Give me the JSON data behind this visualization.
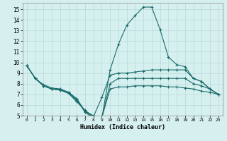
{
  "xlabel": "Humidex (Indice chaleur)",
  "bg_color": "#d6f0f0",
  "grid_color": "#b8d8d8",
  "line_color": "#1a6b6b",
  "xlim": [
    -0.5,
    23.5
  ],
  "ylim": [
    5,
    15.6
  ],
  "yticks": [
    5,
    6,
    7,
    8,
    9,
    10,
    11,
    12,
    13,
    14,
    15
  ],
  "xticks": [
    0,
    1,
    2,
    3,
    4,
    5,
    6,
    7,
    8,
    9,
    10,
    11,
    12,
    13,
    14,
    15,
    16,
    17,
    18,
    19,
    20,
    21,
    22,
    23
  ],
  "lines": [
    {
      "x": [
        0,
        1,
        2,
        3,
        4,
        5,
        6,
        7,
        8,
        9,
        10,
        11,
        12,
        13,
        14,
        15,
        16,
        17,
        18,
        19,
        20,
        21,
        22,
        23
      ],
      "y": [
        9.7,
        8.5,
        7.8,
        7.5,
        7.5,
        7.2,
        6.5,
        5.3,
        4.8,
        4.7,
        9.3,
        11.7,
        13.5,
        14.4,
        15.2,
        15.2,
        13.1,
        10.5,
        9.8,
        9.6,
        8.5,
        8.2,
        7.5,
        7.0
      ]
    },
    {
      "x": [
        0,
        1,
        2,
        3,
        4,
        5,
        6,
        7,
        8,
        9,
        10,
        11,
        12,
        13,
        14,
        15,
        16,
        17,
        18,
        19,
        20,
        21,
        22,
        23
      ],
      "y": [
        9.7,
        8.5,
        7.8,
        7.5,
        7.4,
        7.1,
        6.3,
        5.5,
        4.9,
        6.7,
        8.8,
        9.0,
        9.0,
        9.1,
        9.2,
        9.3,
        9.3,
        9.3,
        9.3,
        9.3,
        8.5,
        8.2,
        7.5,
        7.0
      ]
    },
    {
      "x": [
        0,
        1,
        2,
        3,
        4,
        5,
        6,
        7,
        8,
        9,
        10,
        11,
        12,
        13,
        14,
        15,
        16,
        17,
        18,
        19,
        20,
        21,
        22,
        23
      ],
      "y": [
        9.7,
        8.5,
        7.9,
        7.6,
        7.5,
        7.2,
        6.6,
        5.4,
        5.0,
        4.8,
        7.5,
        7.7,
        7.7,
        7.8,
        7.8,
        7.8,
        7.8,
        7.7,
        7.7,
        7.6,
        7.5,
        7.3,
        7.2,
        7.0
      ]
    },
    {
      "x": [
        0,
        1,
        2,
        3,
        4,
        5,
        6,
        7,
        8,
        9,
        10,
        11,
        12,
        13,
        14,
        15,
        16,
        17,
        18,
        19,
        20,
        21,
        22,
        23
      ],
      "y": [
        9.7,
        8.5,
        7.8,
        7.5,
        7.4,
        7.1,
        6.4,
        5.4,
        4.9,
        4.8,
        8.0,
        8.5,
        8.5,
        8.5,
        8.5,
        8.5,
        8.5,
        8.5,
        8.5,
        8.5,
        8.0,
        7.8,
        7.5,
        7.0
      ]
    }
  ]
}
